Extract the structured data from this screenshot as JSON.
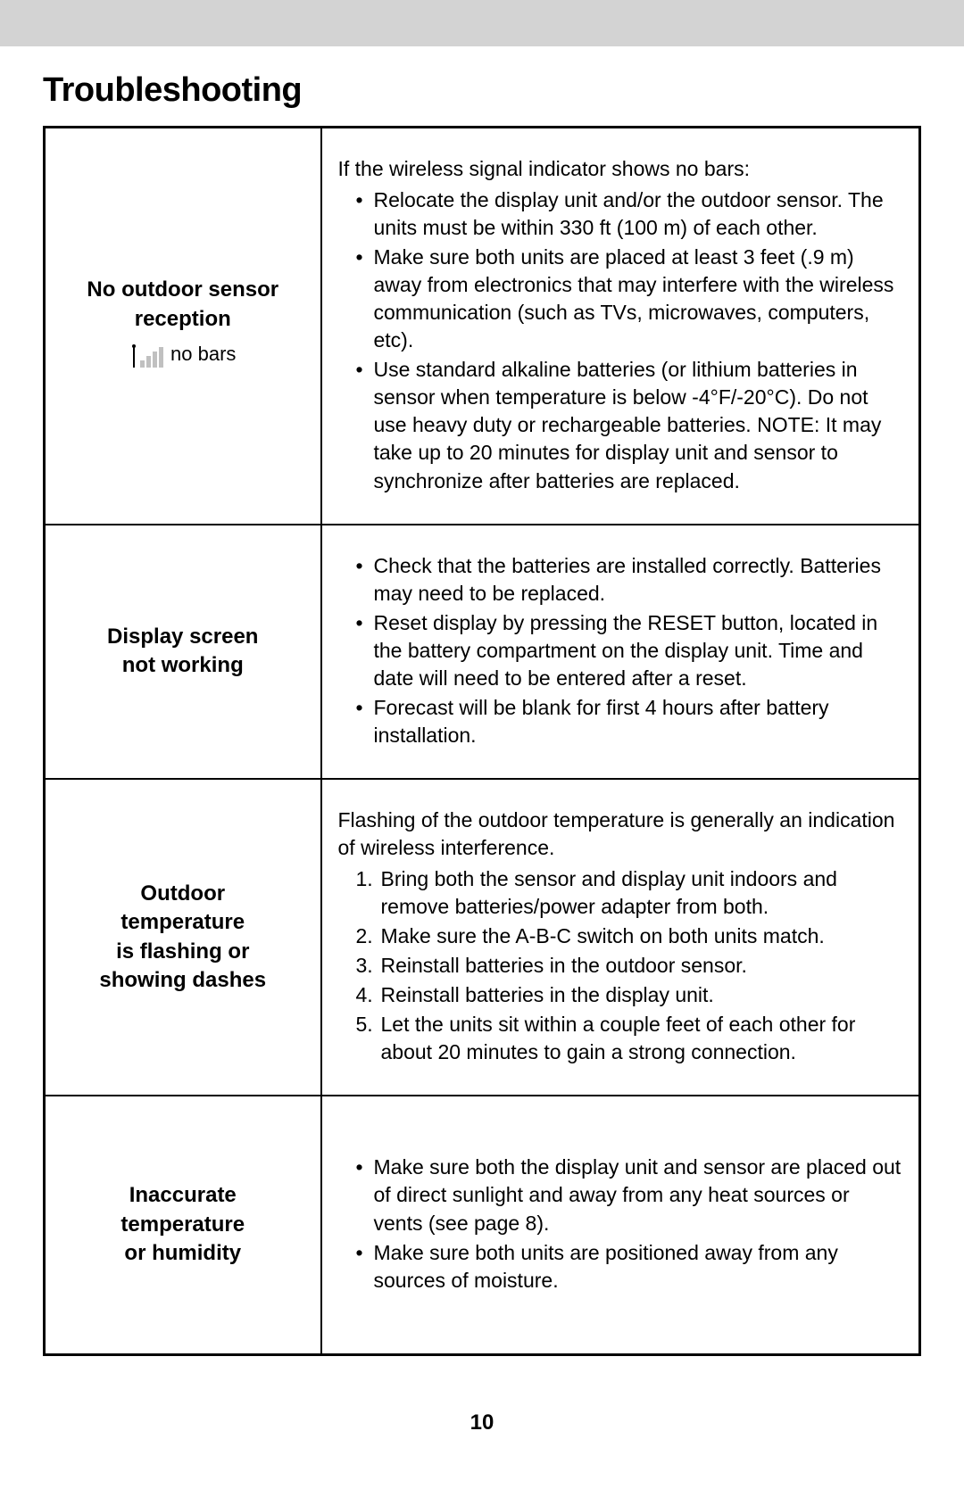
{
  "page": {
    "title": "Troubleshooting",
    "pageNumber": "10"
  },
  "rows": [
    {
      "problemLines": [
        "No outdoor sensor",
        "reception"
      ],
      "subLabel": "no bars",
      "hasSignalIcon": true,
      "lead": "If the wireless signal indicator shows no bars:",
      "listType": "ul",
      "items": [
        "Relocate the display unit and/or the outdoor sensor. The units must be within 330 ft (100 m) of each other.",
        "Make sure both units are placed at least 3 feet (.9 m) away from electronics that may interfere with the wireless communication (such as TVs, microwaves, computers, etc).",
        "Use standard alkaline batteries (or lithium batteries in sensor when temperature is below -4°F/-20°C). Do not use heavy duty or rechargeable batteries. NOTE: It may take up to 20 minutes for display unit and sensor to synchronize after batteries are replaced."
      ]
    },
    {
      "problemLines": [
        "Display screen",
        "not working"
      ],
      "listType": "ul",
      "items": [
        "Check that the batteries are installed correctly. Batteries may need to be replaced.",
        "Reset display by pressing the RESET button, located in the battery compartment on the display unit. Time and date will need to be entered after a reset.",
        "Forecast will be blank for first 4 hours after battery installation."
      ]
    },
    {
      "problemLines": [
        "Outdoor",
        "temperature",
        "is flashing or",
        "showing dashes"
      ],
      "lead": "Flashing of the outdoor temperature is generally an indication of wireless interference.",
      "listType": "ol",
      "items": [
        "Bring both the sensor and display unit indoors and remove batteries/power adapter from both.",
        "Make sure the A-B-C switch on both units match.",
        "Reinstall batteries in the outdoor sensor.",
        "Reinstall batteries in the display unit.",
        "Let the units sit within a couple feet of each other for about 20 minutes to gain a strong connection."
      ]
    },
    {
      "problemLines": [
        "Inaccurate",
        "temperature",
        "or humidity"
      ],
      "listType": "ul",
      "tall": true,
      "items": [
        "Make sure both the display unit and sensor are placed out of direct sunlight and away from any heat sources or vents (see page 8).",
        "Make sure both units are positioned away from any sources of moisture."
      ]
    }
  ]
}
